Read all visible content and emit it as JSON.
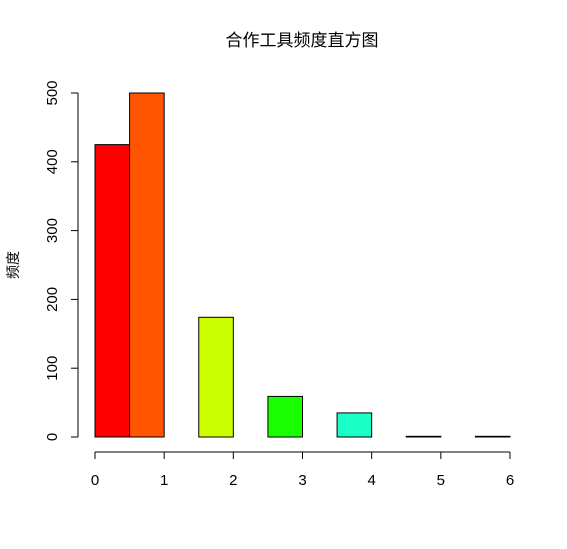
{
  "chart_data": {
    "type": "bar",
    "title": "合作工具频度直方图",
    "xlabel": "",
    "ylabel": "频度",
    "xlim": [
      0,
      6
    ],
    "ylim": [
      0,
      500
    ],
    "x_ticks": [
      0,
      1,
      2,
      3,
      4,
      5,
      6
    ],
    "y_ticks": [
      0,
      100,
      200,
      300,
      400,
      500
    ],
    "grid": false,
    "legend": "none",
    "bins": [
      {
        "start": 0.0,
        "end": 0.5,
        "value": 425,
        "color": "#FF0000"
      },
      {
        "start": 0.5,
        "end": 1.0,
        "value": 500,
        "color": "#FF5500"
      },
      {
        "start": 1.0,
        "end": 1.5,
        "value": 0,
        "color": "#FFAA00"
      },
      {
        "start": 1.5,
        "end": 2.0,
        "value": 174,
        "color": "#CCFF00"
      },
      {
        "start": 2.0,
        "end": 2.5,
        "value": 0,
        "color": "#66FF00"
      },
      {
        "start": 2.5,
        "end": 3.0,
        "value": 59,
        "color": "#1AFF00"
      },
      {
        "start": 3.0,
        "end": 3.5,
        "value": 0,
        "color": "#00FF66"
      },
      {
        "start": 3.5,
        "end": 4.0,
        "value": 35,
        "color": "#1AFFC6"
      },
      {
        "start": 4.0,
        "end": 4.5,
        "value": 0,
        "color": "#00AAFF"
      },
      {
        "start": 4.5,
        "end": 5.0,
        "value": 1,
        "color": "#0055FF"
      },
      {
        "start": 5.0,
        "end": 5.5,
        "value": 0,
        "color": "#1A00FF"
      },
      {
        "start": 5.5,
        "end": 6.0,
        "value": 1,
        "color": "#6600FF"
      }
    ]
  }
}
